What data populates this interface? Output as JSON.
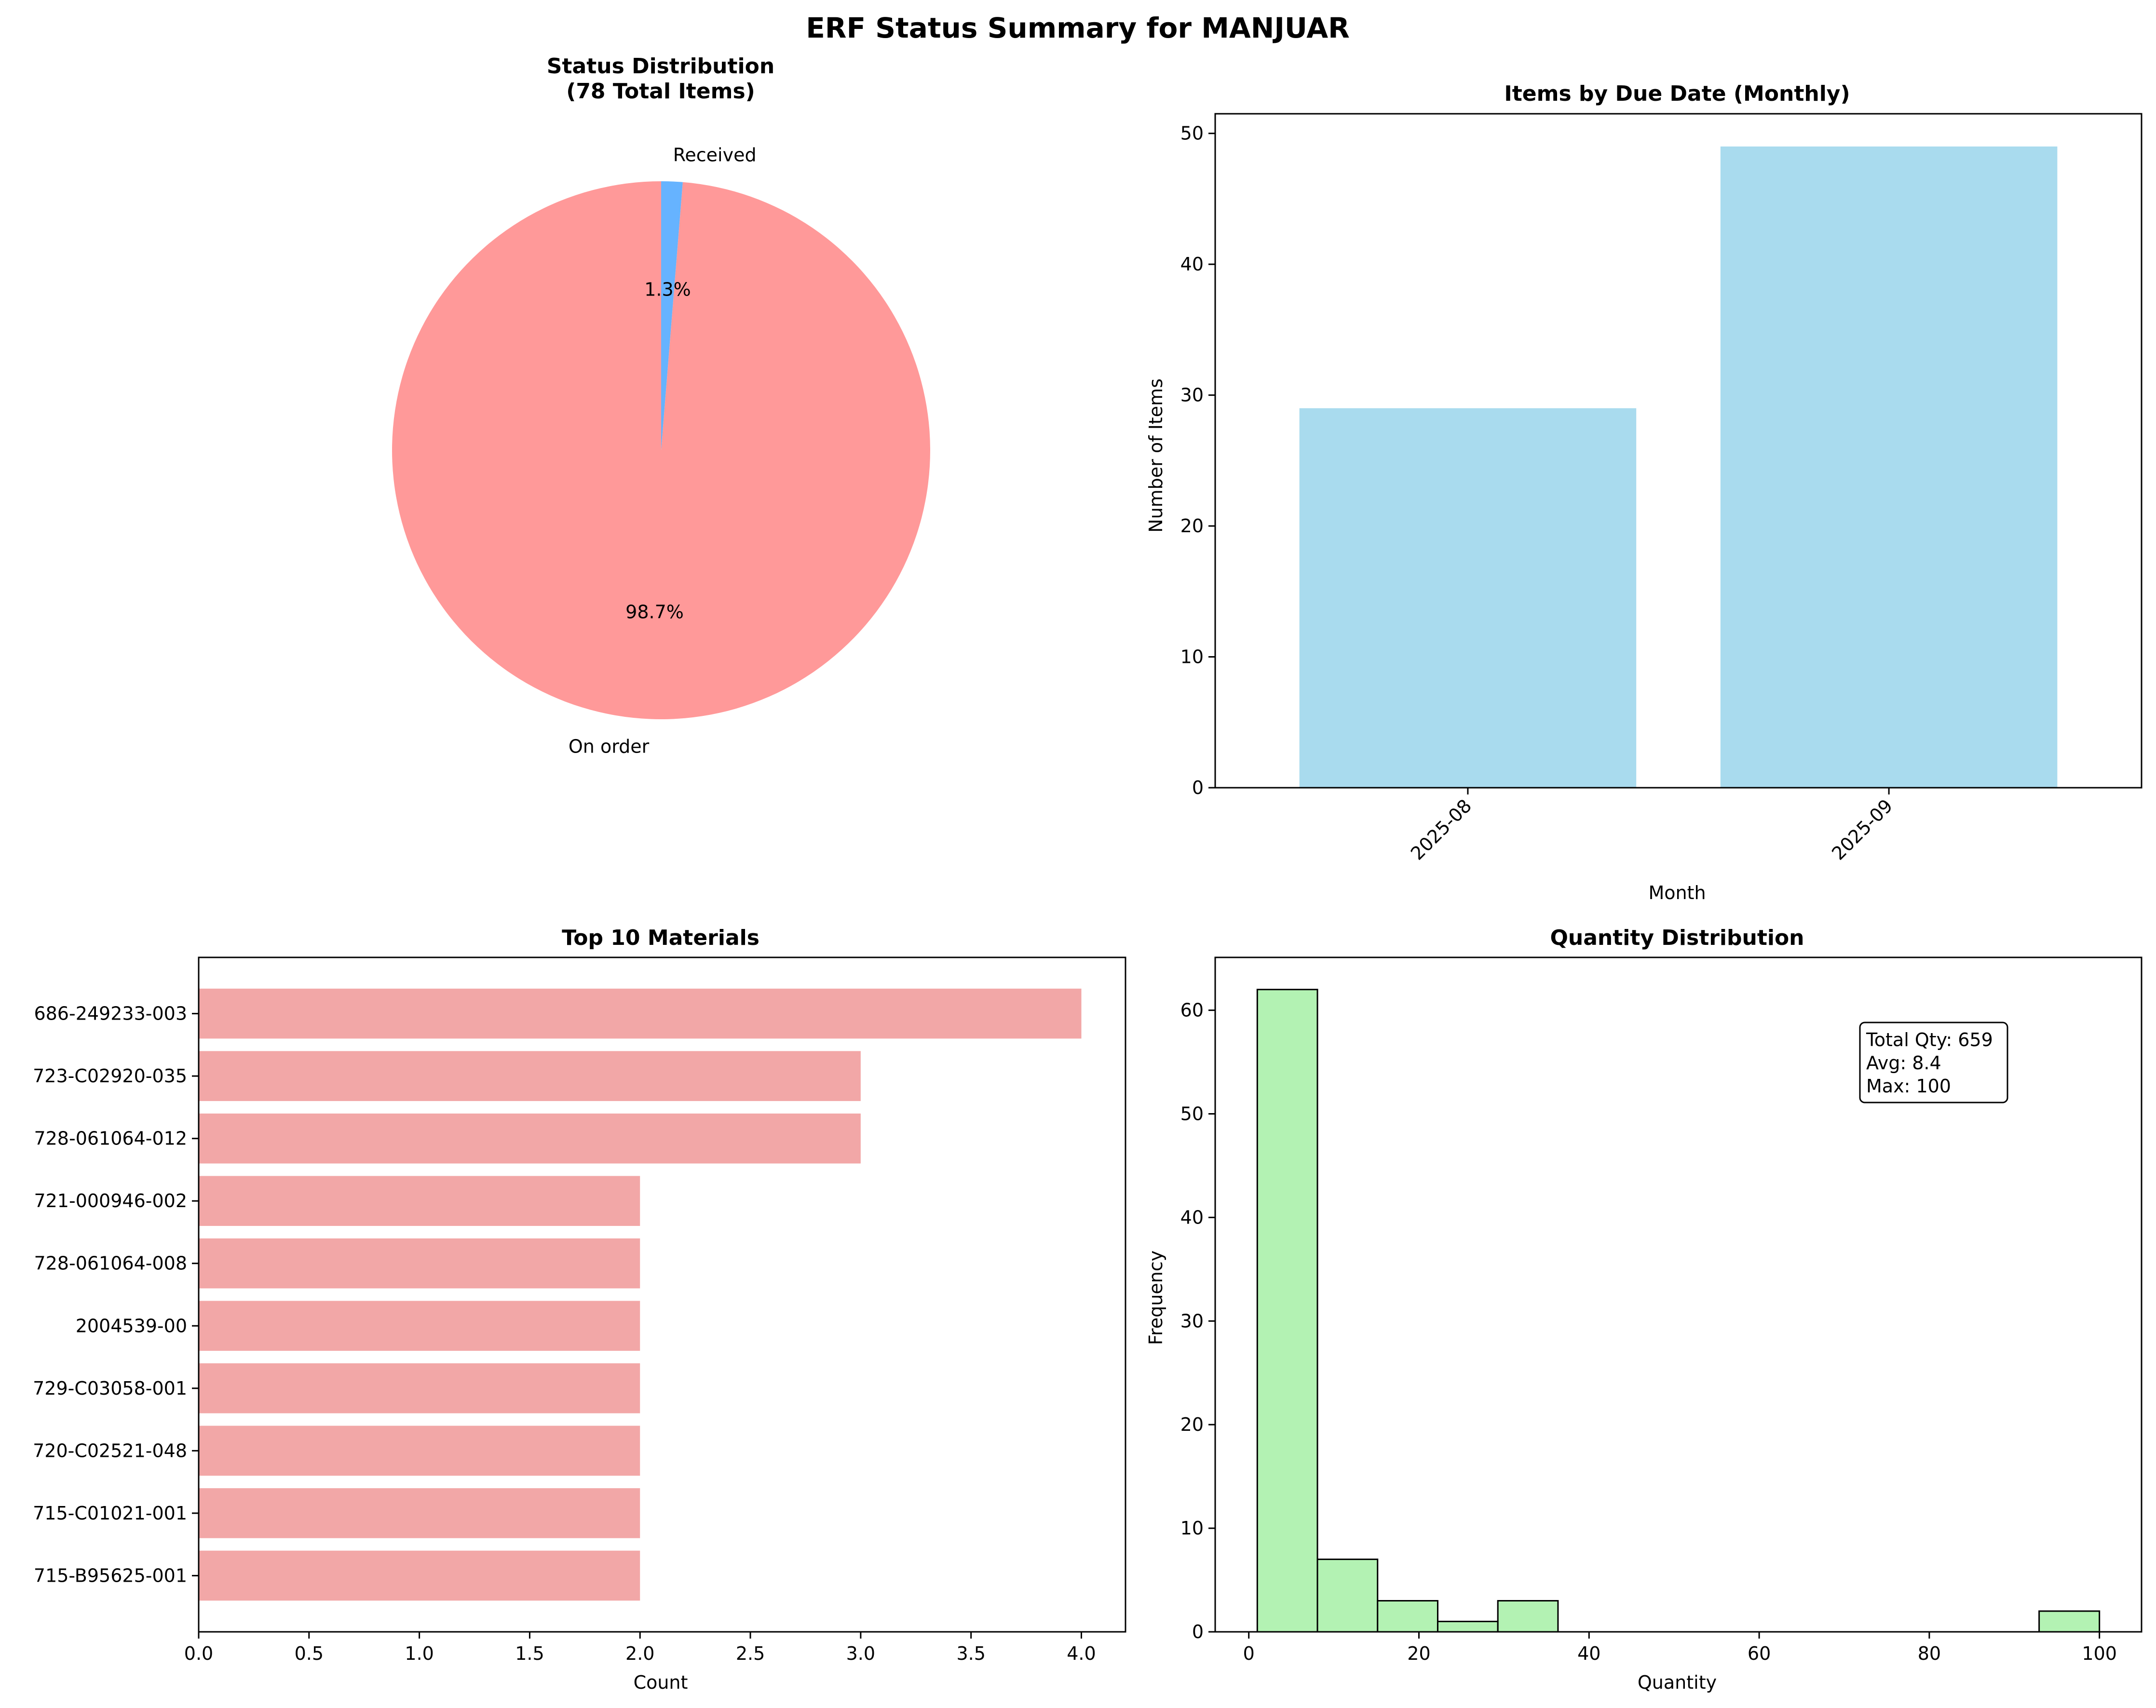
{
  "figure_title": "ERF Status Summary for MANJUAR",
  "colors": {
    "pie_on_order": "#ff9999",
    "pie_received": "#66b3ff",
    "monthly_bar": "#a9dbee",
    "materials_bar": "#f2a7a7",
    "hist_bar": "#b3f2b3",
    "axis": "#000000"
  },
  "chart_data": [
    {
      "type": "pie",
      "title": "Status Distribution\n(78 Total Items)",
      "slices": [
        {
          "label": "On order",
          "value": 77,
          "pct_label": "98.7%"
        },
        {
          "label": "Received",
          "value": 1,
          "pct_label": "1.3%"
        }
      ]
    },
    {
      "type": "bar",
      "title": "Items by Due Date (Monthly)",
      "xlabel": "Month",
      "ylabel": "Number of Items",
      "categories": [
        "2025-08",
        "2025-09"
      ],
      "values": [
        29,
        49
      ],
      "ylim": [
        0,
        51.5
      ],
      "yticks": [
        0,
        10,
        20,
        30,
        40,
        50
      ]
    },
    {
      "type": "bar",
      "orientation": "horizontal",
      "title": "Top 10 Materials",
      "xlabel": "Count",
      "categories": [
        "686-249233-003",
        "723-C02920-035",
        "728-061064-012",
        "721-000946-002",
        "728-061064-008",
        "2004539-00",
        "729-C03058-001",
        "720-C02521-048",
        "715-C01021-001",
        "715-B95625-001"
      ],
      "values": [
        4,
        3,
        3,
        2,
        2,
        2,
        2,
        2,
        2,
        2
      ],
      "xlim": [
        0,
        4.2
      ],
      "xticks": [
        "0.0",
        "0.5",
        "1.0",
        "1.5",
        "2.0",
        "2.5",
        "3.0",
        "3.5",
        "4.0"
      ]
    },
    {
      "type": "bar",
      "subtype": "histogram",
      "title": "Quantity Distribution",
      "xlabel": "Quantity",
      "ylabel": "Frequency",
      "bins": [
        1,
        8.07,
        15.14,
        22.21,
        29.28,
        36.35,
        43.42,
        50.49,
        57.56,
        64.63,
        71.7,
        78.77,
        85.84,
        92.91,
        100
      ],
      "counts": [
        62,
        7,
        3,
        1,
        3,
        0,
        0,
        0,
        0,
        0,
        0,
        0,
        0,
        2
      ],
      "xlim": [
        -3.95,
        104.95
      ],
      "ylim": [
        0,
        65.1
      ],
      "xticks": [
        0,
        20,
        40,
        60,
        80,
        100
      ],
      "yticks": [
        0,
        10,
        20,
        30,
        40,
        50,
        60
      ],
      "annotation": [
        "Total Qty: 659",
        "Avg: 8.4",
        "Max: 100"
      ]
    }
  ]
}
